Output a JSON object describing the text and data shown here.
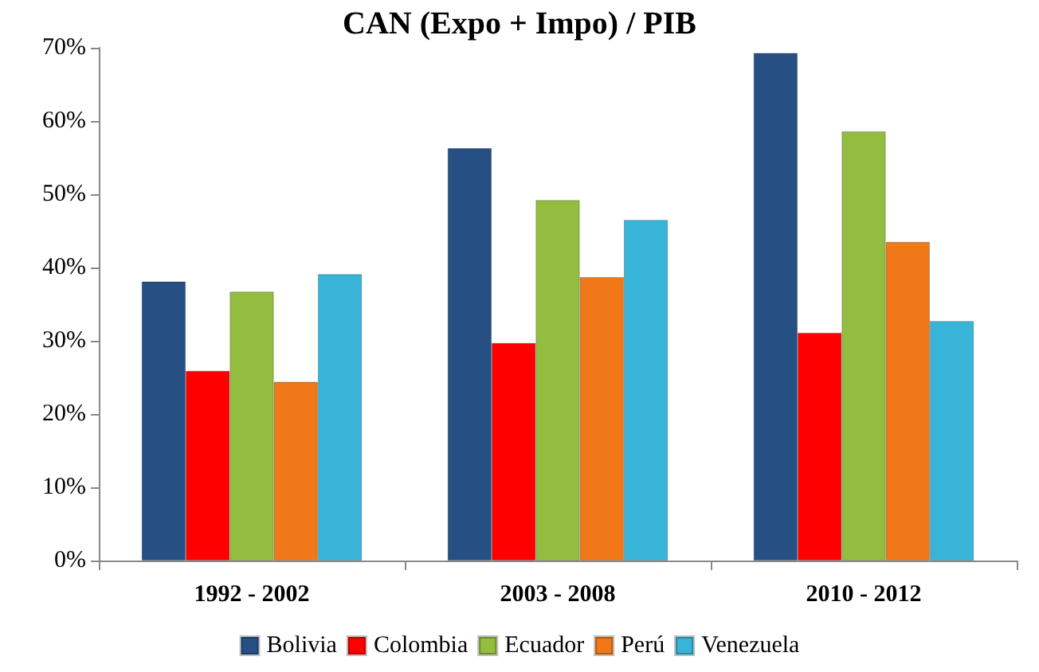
{
  "chart_data": {
    "type": "bar",
    "title": "CAN (Expo + Impo) / PIB",
    "categories": [
      "1992 - 2002",
      "2003 - 2008",
      "2010 - 2012"
    ],
    "series": [
      {
        "name": "Bolivia",
        "color": "#264f84",
        "values": [
          38.1,
          56.3,
          69.3
        ]
      },
      {
        "name": "Colombia",
        "color": "#ff0000",
        "values": [
          25.9,
          29.7,
          31.1
        ]
      },
      {
        "name": "Ecuador",
        "color": "#93bd3f",
        "values": [
          36.7,
          49.2,
          58.6
        ]
      },
      {
        "name": "Perú",
        "color": "#f07818",
        "values": [
          24.4,
          38.7,
          43.5
        ]
      },
      {
        "name": "Venezuela",
        "color": "#38b4d8",
        "values": [
          39.1,
          46.5,
          32.7
        ]
      }
    ],
    "ylim": [
      0,
      70
    ],
    "yticks": [
      {
        "value": 0,
        "label": "0%"
      },
      {
        "value": 10,
        "label": "10%"
      },
      {
        "value": 20,
        "label": "20%"
      },
      {
        "value": 30,
        "label": "30%"
      },
      {
        "value": 40,
        "label": "40%"
      },
      {
        "value": 50,
        "label": "50%"
      },
      {
        "value": 60,
        "label": "60%"
      },
      {
        "value": 70,
        "label": "70%"
      }
    ],
    "grid": false,
    "legend": "bottom"
  }
}
